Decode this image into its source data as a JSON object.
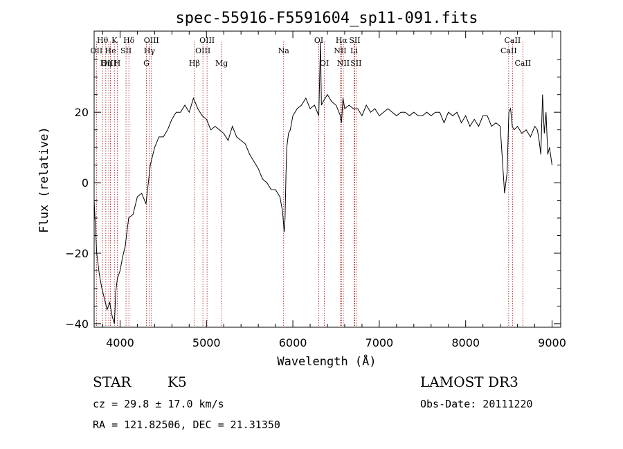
{
  "chart_data": {
    "type": "line",
    "title": "spec-55916-F5591604_sp11-091.fits",
    "xlabel": "Wavelength (Å)",
    "ylabel": "Flux (relative)",
    "xlim": [
      3700,
      9100
    ],
    "ylim": [
      -41,
      43
    ],
    "xticks": [
      4000,
      5000,
      6000,
      7000,
      8000,
      9000
    ],
    "yticks": [
      -40,
      -20,
      0,
      20
    ],
    "xtick_labels": [
      "4000",
      "5000",
      "6000",
      "7000",
      "8000",
      "9000"
    ],
    "ytick_labels": [
      "−40",
      "−20",
      "0",
      "20"
    ],
    "series": [
      {
        "name": "flux",
        "x": [
          3700,
          3730,
          3760,
          3790,
          3820,
          3850,
          3880,
          3910,
          3935,
          3950,
          3970,
          4000,
          4030,
          4060,
          4100,
          4150,
          4200,
          4250,
          4300,
          4350,
          4400,
          4450,
          4500,
          4550,
          4600,
          4650,
          4700,
          4750,
          4800,
          4850,
          4900,
          4950,
          5000,
          5050,
          5100,
          5150,
          5200,
          5250,
          5300,
          5350,
          5400,
          5450,
          5500,
          5550,
          5600,
          5650,
          5700,
          5750,
          5800,
          5850,
          5880,
          5900,
          5910,
          5920,
          5930,
          5950,
          5970,
          6000,
          6050,
          6100,
          6150,
          6200,
          6250,
          6300,
          6320,
          6330,
          6350,
          6400,
          6450,
          6500,
          6550,
          6563,
          6580,
          6600,
          6650,
          6700,
          6750,
          6800,
          6850,
          6900,
          6950,
          7000,
          7050,
          7100,
          7150,
          7200,
          7250,
          7300,
          7350,
          7400,
          7450,
          7500,
          7550,
          7600,
          7650,
          7700,
          7750,
          7800,
          7850,
          7900,
          7950,
          8000,
          8050,
          8100,
          8150,
          8200,
          8250,
          8300,
          8350,
          8400,
          8450,
          8480,
          8500,
          8520,
          8540,
          8560,
          8600,
          8650,
          8700,
          8750,
          8800,
          8830,
          8850,
          8870,
          8890,
          8910,
          8930,
          8950,
          8970,
          9000
        ],
        "y": [
          -5,
          -20,
          -26,
          -30,
          -33,
          -36,
          -34,
          -38,
          -40,
          -31,
          -27,
          -25,
          -21,
          -18,
          -10,
          -9,
          -4,
          -3,
          -6,
          5,
          10,
          13,
          13,
          15,
          18,
          20,
          20,
          22,
          20,
          24,
          21,
          19,
          18,
          15,
          16,
          15,
          14,
          12,
          16,
          13,
          12,
          11,
          8,
          6,
          4,
          1,
          0,
          -2,
          -2,
          -4,
          -8,
          -14,
          -10,
          2,
          10,
          14,
          15,
          19,
          21,
          22,
          24,
          21,
          22,
          19,
          40,
          22,
          23,
          25,
          23,
          22,
          19,
          17,
          24,
          21,
          22,
          21,
          21,
          19,
          22,
          20,
          21,
          19,
          20,
          21,
          20,
          19,
          20,
          20,
          19,
          20,
          19,
          19,
          20,
          19,
          20,
          20,
          17,
          20,
          19,
          20,
          17,
          19,
          16,
          18,
          16,
          19,
          19,
          16,
          17,
          16,
          -3,
          3,
          20,
          21,
          16,
          15,
          16,
          14,
          15,
          13,
          16,
          15,
          12,
          8,
          25,
          14,
          20,
          8,
          10,
          5
        ]
      }
    ],
    "line_ids": [
      {
        "label": "Hθ",
        "wl": 3797,
        "row": 1
      },
      {
        "label": "OII",
        "wl": 3727,
        "row": 2
      },
      {
        "label": "OIII",
        "wl": 3869,
        "row": 3
      },
      {
        "label": "He",
        "wl": 3889,
        "row": 2
      },
      {
        "label": "K",
        "wl": 3934,
        "row": 1
      },
      {
        "label": "Hη",
        "wl": 3835,
        "row": 3
      },
      {
        "label": "SII",
        "wl": 4069,
        "row": 2
      },
      {
        "label": "H",
        "wl": 3968,
        "row": 3
      },
      {
        "label": "Hδ",
        "wl": 4102,
        "row": 1
      },
      {
        "label": "OIII",
        "wl": 4363,
        "row": 1
      },
      {
        "label": "Hγ",
        "wl": 4340,
        "row": 2
      },
      {
        "label": "G",
        "wl": 4305,
        "row": 3
      },
      {
        "label": "OIII",
        "wl": 5007,
        "row": 1
      },
      {
        "label": "OIII",
        "wl": 4959,
        "row": 2
      },
      {
        "label": "Hβ",
        "wl": 4861,
        "row": 3
      },
      {
        "label": "Mg",
        "wl": 5175,
        "row": 3
      },
      {
        "label": "Na",
        "wl": 5893,
        "row": 2
      },
      {
        "label": "OI",
        "wl": 6300,
        "row": 1
      },
      {
        "label": "OI",
        "wl": 6364,
        "row": 3
      },
      {
        "label": "Hα",
        "wl": 6563,
        "row": 1
      },
      {
        "label": "SII",
        "wl": 6716,
        "row": 1
      },
      {
        "label": "NII",
        "wl": 6548,
        "row": 2
      },
      {
        "label": "Li",
        "wl": 6708,
        "row": 2
      },
      {
        "label": "NII",
        "wl": 6584,
        "row": 3
      },
      {
        "label": "SII",
        "wl": 6731,
        "row": 3
      },
      {
        "label": "CaII",
        "wl": 8542,
        "row": 1
      },
      {
        "label": "CaII",
        "wl": 8498,
        "row": 2
      },
      {
        "label": "CaII",
        "wl": 8662,
        "row": 3
      }
    ],
    "info": {
      "star_label": "STAR",
      "spectral_type": "K5",
      "survey": "LAMOST DR3",
      "cz": "cz = 29.8 ± 17.0 km/s",
      "obs_date": "Obs-Date: 20111220",
      "radec": "RA = 121.82506, DEC =  21.31350"
    }
  }
}
